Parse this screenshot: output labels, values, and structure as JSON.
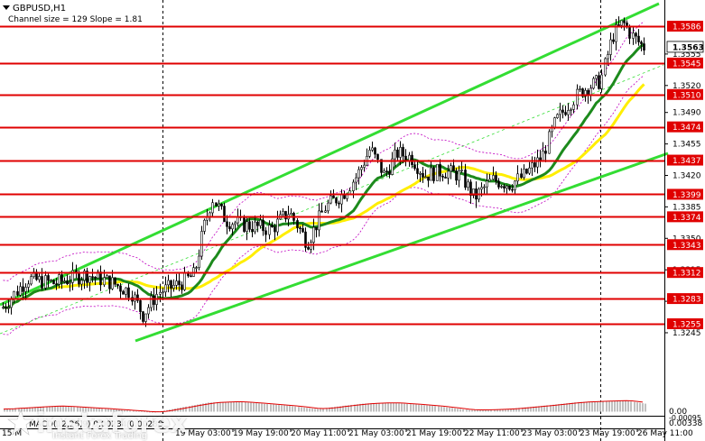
{
  "header": {
    "symbol": "GBPUSD,H1",
    "channel_info": "Channel size = 129 Slope = 1.81"
  },
  "chart_data": {
    "type": "candlestick",
    "symbol": "GBPUSD,H1",
    "current_price": "1.3563",
    "price_axis_ticks": [
      "1.3555",
      "1.3520",
      "1.3490",
      "1.3455",
      "1.3420",
      "1.3385",
      "1.3350",
      "1.3315",
      "1.3280",
      "1.3245"
    ],
    "levels": [
      "1.3586",
      "1.3545",
      "1.3510",
      "1.3474",
      "1.3437",
      "1.3399",
      "1.3374",
      "1.3343",
      "1.3312",
      "1.3283",
      "1.3255"
    ],
    "time_labels": [
      "19 May 03:00",
      "19 May 19:00",
      "20 May 11:00",
      "21 May 03:00",
      "21 May 19:00",
      "22 May 11:00",
      "23 May 03:00",
      "23 May 19:00",
      "26 May 11:00"
    ],
    "time_label_partial_left": "15 M",
    "time_label_partial_right": "May 11:00",
    "indicator": {
      "label": "MACD(12,26,9) 0.00234 0.00288",
      "ticks": [
        "0.00338",
        "0.00"
      ],
      "min_label": "-0.00095"
    },
    "colors": {
      "levels": "#e00000",
      "level_label_bg": "#e00000",
      "channel": "#33dd33",
      "ma_fast": "#1c8a1c",
      "ma_slow": "#ffee00",
      "candles": "#000000",
      "bollinger": "#c000c0",
      "macd_hist": "#c0c0c0",
      "macd_signal": "#e00000"
    }
  },
  "watermark": {
    "brand": "instaforex",
    "tagline": "Instant Forex Trading"
  }
}
